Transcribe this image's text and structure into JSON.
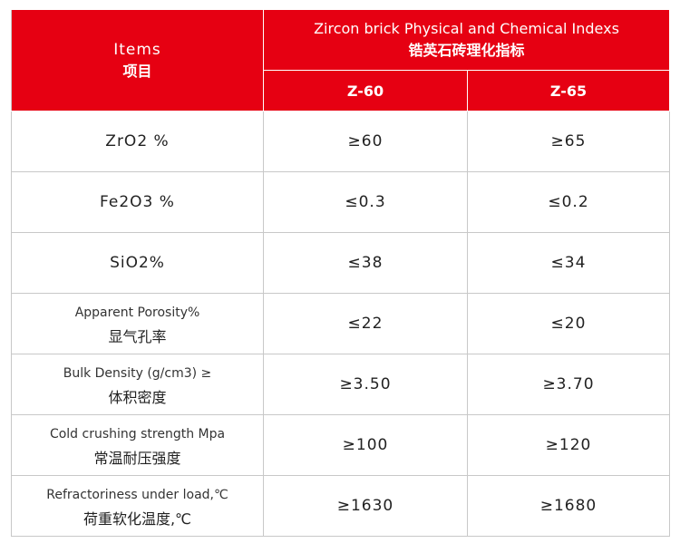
{
  "header": {
    "items": [
      "Items",
      "项目"
    ],
    "title": [
      "Zircon brick Physical and Chemical Indexs",
      "锆英石砖理化指标"
    ],
    "columns": [
      "Z-60",
      "Z-65"
    ]
  },
  "table": {
    "rows": [
      {
        "item": [
          "ZrO2 %"
        ],
        "values": [
          "≥60",
          "≥65"
        ]
      },
      {
        "item": [
          "Fe2O3 %"
        ],
        "values": [
          "≤0.3",
          "≤0.2"
        ]
      },
      {
        "item": [
          "SiO2%"
        ],
        "values": [
          "≤38",
          "≤34"
        ]
      },
      {
        "item": [
          "Apparent Porosity%",
          "显气孔率"
        ],
        "values": [
          "≤22",
          "≤20"
        ]
      },
      {
        "item": [
          "Bulk Density (g/cm3) ≥",
          "体积密度"
        ],
        "values": [
          "≥3.50",
          "≥3.70"
        ]
      },
      {
        "item": [
          "Cold crushing strength Mpa",
          "常温耐压强度"
        ],
        "values": [
          "≥100",
          "≥120"
        ]
      },
      {
        "item": [
          "Refractoriness under load,℃",
          "荷重软化温度,℃"
        ],
        "values": [
          "≥1630",
          "≥1680"
        ]
      }
    ]
  }
}
